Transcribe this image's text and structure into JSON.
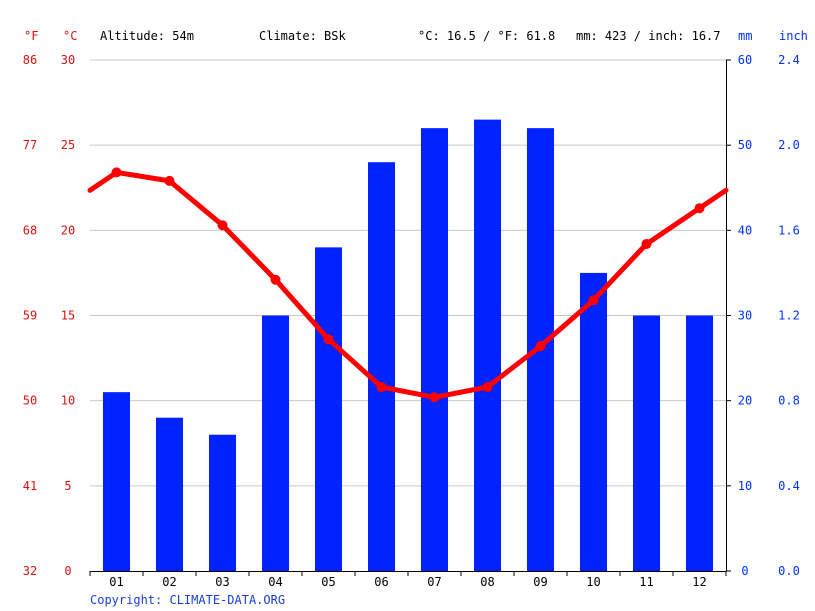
{
  "header": {
    "unit_f": "°F",
    "unit_c": "°C",
    "altitude": "Altitude: 54m",
    "climate": "Climate: BSk",
    "temp_avg": "°C: 16.5 / °F: 61.8",
    "precip_total": "mm: 423 / inch: 16.7",
    "unit_mm": "mm",
    "unit_inch": "inch"
  },
  "footer": {
    "copyright": "Copyright: CLIMATE-DATA.ORG"
  },
  "colors": {
    "temperature": "#ff0000",
    "precipitation": "#0022ff",
    "left_axis": "#e01010",
    "right_axis": "#0033ff",
    "grid": "#c8c8c8"
  },
  "chart_data": {
    "type": "bar",
    "categories": [
      "01",
      "02",
      "03",
      "04",
      "05",
      "06",
      "07",
      "08",
      "09",
      "10",
      "11",
      "12"
    ],
    "series": [
      {
        "name": "",
        "kind": "bar",
        "axis": "mm",
        "values": [
          21,
          18,
          16,
          30,
          38,
          48,
          52,
          53,
          52,
          35,
          30,
          30
        ]
      },
      {
        "name": "",
        "kind": "line",
        "axis": "°C",
        "values": [
          23.4,
          22.9,
          20.3,
          17.1,
          13.6,
          10.8,
          10.2,
          10.8,
          13.2,
          15.9,
          19.2,
          21.3
        ]
      }
    ],
    "axes": {
      "left_f_ticks": [
        "32",
        "41",
        "50",
        "59",
        "68",
        "77",
        "86"
      ],
      "left_c_ticks": [
        "0",
        "5",
        "10",
        "15",
        "20",
        "25",
        "30"
      ],
      "right_mm_ticks": [
        "0",
        "10",
        "20",
        "30",
        "40",
        "50",
        "60"
      ],
      "right_inch_ticks": [
        "0.0",
        "0.4",
        "0.8",
        "1.2",
        "1.6",
        "2.0",
        "2.4"
      ]
    },
    "c_range": [
      0,
      30
    ],
    "mm_range": [
      0,
      60
    ],
    "grid": true
  }
}
